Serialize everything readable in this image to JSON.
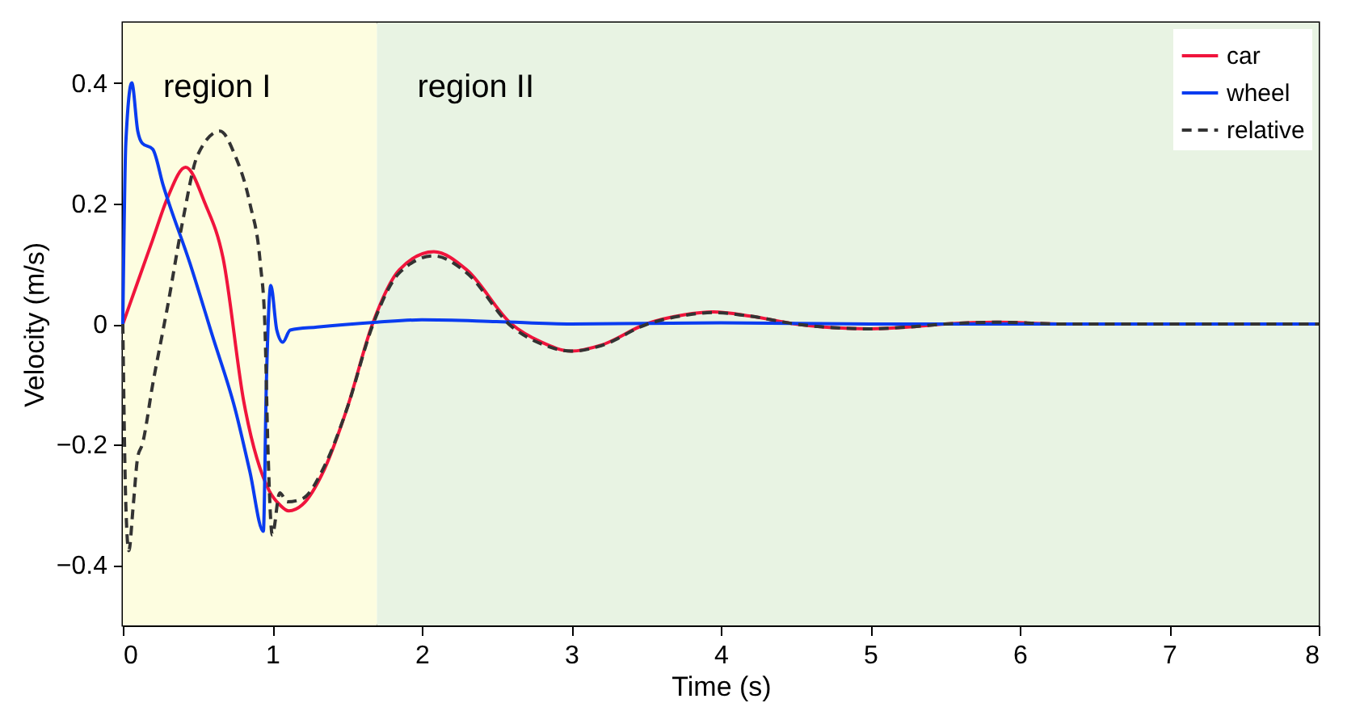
{
  "chart_data": {
    "type": "line",
    "xlabel": "Time (s)",
    "ylabel": "Velocity (m/s)",
    "xlim": [
      0,
      8
    ],
    "ylim": [
      -0.5,
      0.5
    ],
    "xticks": [
      0,
      1,
      2,
      3,
      4,
      5,
      6,
      7,
      8
    ],
    "yticks": [
      {
        "value": -0.4,
        "label": "−0.4"
      },
      {
        "value": -0.2,
        "label": "−0.2"
      },
      0,
      0.2,
      0.4
    ],
    "bands": [
      {
        "axis": "x",
        "from": 0,
        "to": 1.7,
        "label": "region I",
        "color": "#fdfde0"
      },
      {
        "axis": "x",
        "from": 1.7,
        "to": 8,
        "label": "region II",
        "color": "#e8f3e3"
      }
    ],
    "legend": "top right",
    "grid": false,
    "series": [
      {
        "name": "car",
        "color": "#f0143c",
        "line_style": "solid",
        "x": [
          0,
          0.1,
          0.2,
          0.3,
          0.42,
          0.55,
          0.67,
          0.81,
          0.98,
          1.05,
          1.11,
          1.2,
          1.35,
          1.5,
          1.67,
          1.85,
          2.08,
          2.3,
          2.6,
          2.8,
          3.0,
          3.2,
          3.5,
          3.75,
          3.95,
          4.2,
          4.5,
          4.75,
          5.0,
          5.25,
          5.5,
          5.85,
          6.3,
          7,
          8
        ],
        "values": [
          0,
          0.07,
          0.14,
          0.21,
          0.26,
          0.2,
          0.11,
          -0.13,
          -0.277,
          -0.3,
          -0.31,
          -0.3,
          -0.24,
          -0.14,
          0,
          0.09,
          0.12,
          0.09,
          0,
          -0.03,
          -0.045,
          -0.035,
          0,
          0.015,
          0.02,
          0.013,
          0,
          -0.006,
          -0.008,
          -0.005,
          0,
          0.003,
          0,
          0,
          0
        ]
      },
      {
        "name": "wheel",
        "color": "#0a3cf0",
        "line_style": "solid",
        "x": [
          0,
          0.02,
          0.06,
          0.1,
          0.13,
          0.2,
          0.27,
          0.45,
          0.6,
          0.75,
          0.85,
          0.94,
          0.96,
          0.99,
          1.03,
          1.07,
          1.12,
          1.3,
          1.7,
          2.0,
          2.5,
          3,
          4,
          5,
          6,
          8
        ],
        "values": [
          0,
          0.3,
          0.4,
          0.32,
          0.3,
          0.29,
          0.23,
          0.1,
          -0.02,
          -0.14,
          -0.245,
          -0.344,
          -0.1,
          0.064,
          -0.01,
          -0.03,
          -0.01,
          -0.005,
          0.003,
          0.007,
          0.004,
          0,
          0.002,
          0,
          0,
          0
        ]
      },
      {
        "name": "relative",
        "color": "#333333",
        "line_style": "dashed",
        "x": [
          0,
          0.02,
          0.04,
          0.07,
          0.1,
          0.13,
          0.2,
          0.3,
          0.4,
          0.5,
          0.65,
          0.75,
          0.85,
          0.92,
          0.95,
          0.97,
          1.0,
          1.05,
          1.1,
          1.2,
          1.35,
          1.5,
          1.67,
          1.85,
          2.08,
          2.3,
          2.6,
          2.8,
          3.0,
          3.2,
          3.5,
          3.75,
          3.95,
          4.2,
          4.5,
          4.75,
          5.0,
          5.25,
          5.5,
          5.85,
          6.3,
          7,
          8
        ],
        "values": [
          0,
          -0.3,
          -0.376,
          -0.3,
          -0.22,
          -0.2,
          -0.1,
          0.03,
          0.17,
          0.28,
          0.32,
          0.28,
          0.2,
          0.1,
          0.0,
          -0.2,
          -0.35,
          -0.28,
          -0.295,
          -0.29,
          -0.235,
          -0.14,
          -0.003,
          0.085,
          0.113,
          0.085,
          -0.004,
          -0.033,
          -0.045,
          -0.036,
          -0.001,
          0.014,
          0.019,
          0.013,
          0,
          -0.006,
          -0.008,
          -0.005,
          0,
          0.003,
          0,
          0,
          0
        ]
      }
    ]
  }
}
